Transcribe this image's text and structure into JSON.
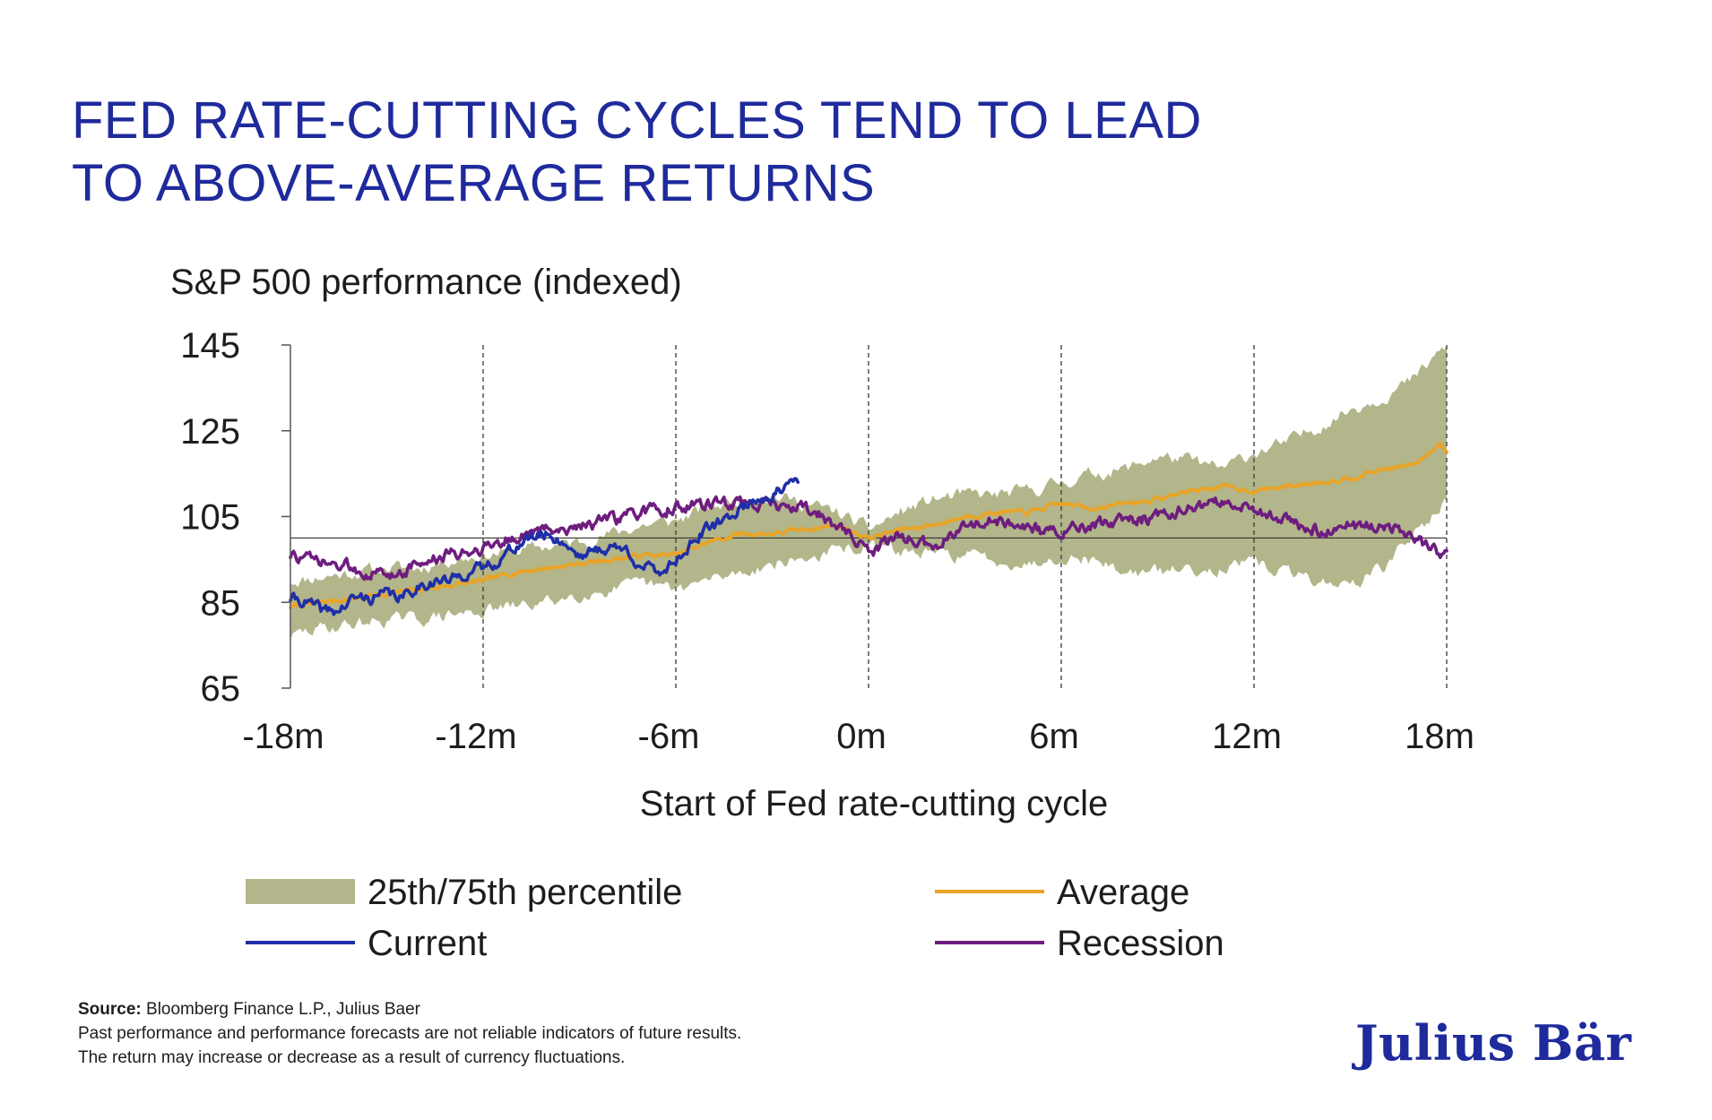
{
  "colors": {
    "title": "#1f2a9c",
    "band": "#b2b68a",
    "average": "#e9a427",
    "current": "#1f2fa8",
    "recession": "#6e1d7f",
    "text": "#1d1d1b"
  },
  "header": {
    "title_line1": "FED RATE-CUTTING CYCLES TEND TO LEAD",
    "title_line2": "TO ABOVE-AVERAGE RETURNS",
    "subtitle": "S&P 500 performance (indexed)"
  },
  "chart_data": {
    "type": "line",
    "title": "S&P 500 performance (indexed)",
    "xlabel": "Start of Fed rate-cutting cycle",
    "ylabel": "",
    "xlim": [
      -18,
      18
    ],
    "ylim": [
      65,
      145
    ],
    "reference_line": 100,
    "x_ticks": [
      -18,
      -12,
      -6,
      0,
      6,
      12,
      18
    ],
    "x_tick_labels": [
      "-18m",
      "-12m",
      "-6m",
      "0m",
      "6m",
      "12m",
      "18m"
    ],
    "y_ticks": [
      65,
      85,
      105,
      125,
      145
    ],
    "y_tick_labels": [
      "65",
      "85",
      "105",
      "125",
      "145"
    ],
    "vertical_gridlines": [
      -12,
      -6,
      0,
      6,
      12,
      18
    ],
    "band": {
      "name": "25th/75th percentile",
      "x": [
        -18,
        -17,
        -16,
        -15,
        -14,
        -13,
        -12,
        -11,
        -10,
        -9,
        -8,
        -7,
        -6,
        -5,
        -4,
        -3,
        -2,
        -1,
        0,
        1,
        2,
        3,
        4,
        5,
        6,
        7,
        8,
        9,
        10,
        11,
        12,
        13,
        14,
        15,
        16,
        17,
        18
      ],
      "low": [
        77,
        79,
        80,
        81,
        81,
        82,
        83,
        84,
        85,
        87,
        88,
        89,
        88,
        90,
        92,
        94,
        95,
        97,
        98,
        97,
        96,
        96,
        95,
        94,
        96,
        95,
        92,
        92,
        93,
        93,
        94,
        92,
        90,
        89,
        93,
        101,
        109
      ],
      "high": [
        90,
        91,
        92,
        93,
        93,
        95,
        96,
        97,
        98,
        99,
        101,
        103,
        104,
        107,
        109,
        110,
        108,
        106,
        102,
        106,
        109,
        110,
        110,
        111,
        113,
        115,
        116,
        119,
        118,
        116,
        120,
        122,
        126,
        130,
        133,
        137,
        145
      ]
    },
    "series": [
      {
        "name": "Average",
        "x": [
          -18,
          -17,
          -16,
          -15,
          -14,
          -13,
          -12,
          -11,
          -10,
          -9,
          -8,
          -7,
          -6,
          -5,
          -4,
          -3,
          -2,
          -1,
          0,
          1,
          2,
          3,
          4,
          5,
          6,
          7,
          8,
          9,
          10,
          11,
          12,
          13,
          14,
          15,
          16,
          17,
          17.8,
          18
        ],
        "values": [
          84,
          85,
          86,
          87,
          88,
          89,
          90,
          92,
          93,
          94,
          95,
          96,
          96,
          99,
          101,
          101,
          102,
          103,
          100,
          102,
          103,
          105,
          106,
          106,
          108,
          107,
          108,
          109,
          111,
          112,
          111,
          112,
          113,
          114,
          116,
          117,
          122,
          120
        ]
      },
      {
        "name": "Current",
        "x": [
          -18,
          -17.5,
          -17,
          -16.5,
          -16,
          -15.5,
          -15,
          -14.5,
          -14,
          -13.5,
          -13,
          -12.5,
          -12,
          -11.5,
          -11,
          -10.5,
          -10,
          -9.5,
          -9,
          -8.5,
          -8,
          -7.5,
          -7,
          -6.5,
          -6,
          -5.5,
          -5,
          -4.5,
          -4,
          -3.5,
          -3,
          -2.5,
          -2.2
        ],
        "values": [
          86,
          85,
          83,
          83,
          86,
          86,
          87,
          86,
          89,
          90,
          90,
          92,
          93,
          95,
          98,
          100,
          101,
          99,
          96,
          97,
          98,
          97,
          93,
          92,
          95,
          99,
          102,
          104,
          107,
          109,
          110,
          112,
          113
        ]
      },
      {
        "name": "Recession",
        "x": [
          -18,
          -17,
          -16,
          -15,
          -14,
          -13,
          -12,
          -11,
          -10,
          -9,
          -8,
          -7,
          -6,
          -5,
          -4,
          -3,
          -2,
          -1.5,
          -1,
          -0.5,
          0,
          0.5,
          1,
          1.5,
          2,
          3,
          4,
          5,
          6,
          7,
          8,
          9,
          10,
          11,
          12,
          13,
          14,
          15,
          16,
          17,
          17.5,
          18
        ],
        "values": [
          96,
          94,
          93,
          91,
          94,
          96,
          98,
          100,
          102,
          103,
          104,
          106,
          107,
          108,
          108,
          108,
          107,
          105,
          103,
          100,
          96,
          99,
          101,
          99,
          98,
          103,
          104,
          102,
          101,
          103,
          104,
          105,
          107,
          108,
          107,
          104,
          102,
          103,
          103,
          101,
          97,
          97
        ]
      }
    ],
    "legend": {
      "placement": "bottom",
      "entries": [
        {
          "name": "25th/75th percentile",
          "kind": "band"
        },
        {
          "name": "Average",
          "kind": "line"
        },
        {
          "name": "Current",
          "kind": "line"
        },
        {
          "name": "Recession",
          "kind": "line"
        }
      ]
    }
  },
  "footer": {
    "source_label": "Source:",
    "source_text": " Bloomberg Finance L.P., Julius Baer",
    "disclaimer_line1": "Past performance and performance forecasts are not reliable indicators of future results.",
    "disclaimer_line2": "The return may increase or decrease as a result of currency fluctuations.",
    "logo_text": "Julius Bär"
  }
}
